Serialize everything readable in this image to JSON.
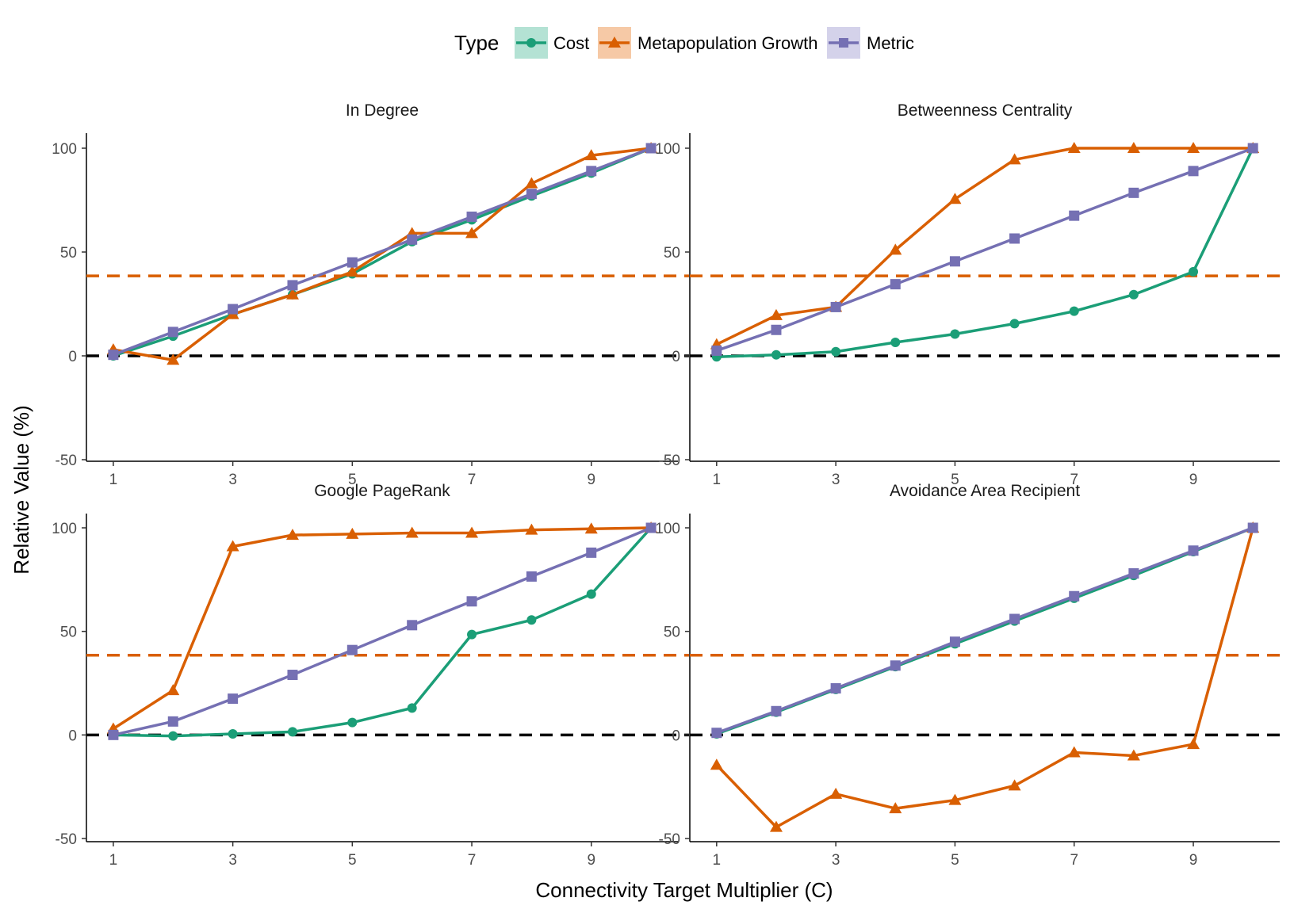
{
  "legend": {
    "title": "Type",
    "placement": "top",
    "items": [
      {
        "name": "Cost",
        "color": "#1b9e77",
        "marker": "circle"
      },
      {
        "name": "Metapopulation Growth",
        "color": "#d95f02",
        "marker": "triangle"
      },
      {
        "name": "Metric",
        "color": "#7570b3",
        "marker": "square"
      }
    ]
  },
  "colors": {
    "Cost": "#1b9e77",
    "Metapopulation Growth": "#d95f02",
    "Metric": "#7570b3",
    "zero_line": "#000000",
    "threshold_line": "#d95f02"
  },
  "xlabel": "Connectivity Target Multiplier (C)",
  "ylabel": "Relative Value (%)",
  "chart_data": {
    "type": "line",
    "facets": 4,
    "x": [
      1,
      2,
      3,
      4,
      5,
      6,
      7,
      8,
      9,
      10
    ],
    "xlim": [
      0.55,
      10.45
    ],
    "ylim": [
      -50,
      107
    ],
    "xticks": [
      1,
      3,
      5,
      7,
      9
    ],
    "yticks": [
      -50,
      0,
      50,
      100
    ],
    "reference_lines": [
      {
        "y": 0,
        "style": "dashed",
        "color": "#000000"
      },
      {
        "y": 38.5,
        "style": "dashed",
        "color": "#d95f02"
      }
    ],
    "grid": false,
    "panels": [
      {
        "title": "In Degree",
        "series": [
          {
            "name": "Cost",
            "values": [
              0,
              9.5,
              20,
              29.5,
              39.5,
              55,
              65.5,
              77,
              88,
              100
            ]
          },
          {
            "name": "Metapopulation Growth",
            "values": [
              3,
              -2,
              20,
              29.5,
              40.5,
              59,
              59,
              83,
              96.5,
              100
            ]
          },
          {
            "name": "Metric",
            "values": [
              0.5,
              11.5,
              22.5,
              34,
              45,
              56,
              67,
              78,
              89,
              100
            ]
          }
        ]
      },
      {
        "title": "Betweenness Centrality",
        "series": [
          {
            "name": "Cost",
            "values": [
              -0.5,
              0.5,
              2,
              6.5,
              10.5,
              15.5,
              21.5,
              29.5,
              40.5,
              100
            ]
          },
          {
            "name": "Metapopulation Growth",
            "values": [
              5.5,
              19.5,
              23.5,
              51,
              75.5,
              94.5,
              100,
              100,
              100,
              100
            ]
          },
          {
            "name": "Metric",
            "values": [
              2.5,
              12.5,
              23.5,
              34.5,
              45.5,
              56.5,
              67.5,
              78.5,
              89,
              100
            ]
          }
        ]
      },
      {
        "title": "Google PageRank",
        "series": [
          {
            "name": "Cost",
            "values": [
              0,
              -0.5,
              0.5,
              1.5,
              6,
              13,
              48.5,
              55.5,
              68,
              100
            ]
          },
          {
            "name": "Metapopulation Growth",
            "values": [
              3,
              21.5,
              91,
              96.5,
              97,
              97.5,
              97.5,
              99,
              99.5,
              100
            ]
          },
          {
            "name": "Metric",
            "values": [
              0,
              6.5,
              17.5,
              29,
              41,
              53,
              64.5,
              76.5,
              88,
              100
            ]
          }
        ]
      },
      {
        "title": "Avoidance Area Recipient",
        "series": [
          {
            "name": "Cost",
            "values": [
              0.5,
              11,
              22,
              33,
              44,
              55,
              66,
              77,
              88.5,
              100
            ]
          },
          {
            "name": "Metapopulation Growth",
            "values": [
              -14.5,
              -44.5,
              -28.5,
              -35.5,
              -31.5,
              -24.5,
              -8.5,
              -10,
              -4.5,
              100
            ]
          },
          {
            "name": "Metric",
            "values": [
              1,
              11.5,
              22.5,
              33.5,
              45,
              56,
              67,
              78,
              89,
              100
            ]
          }
        ]
      }
    ]
  }
}
